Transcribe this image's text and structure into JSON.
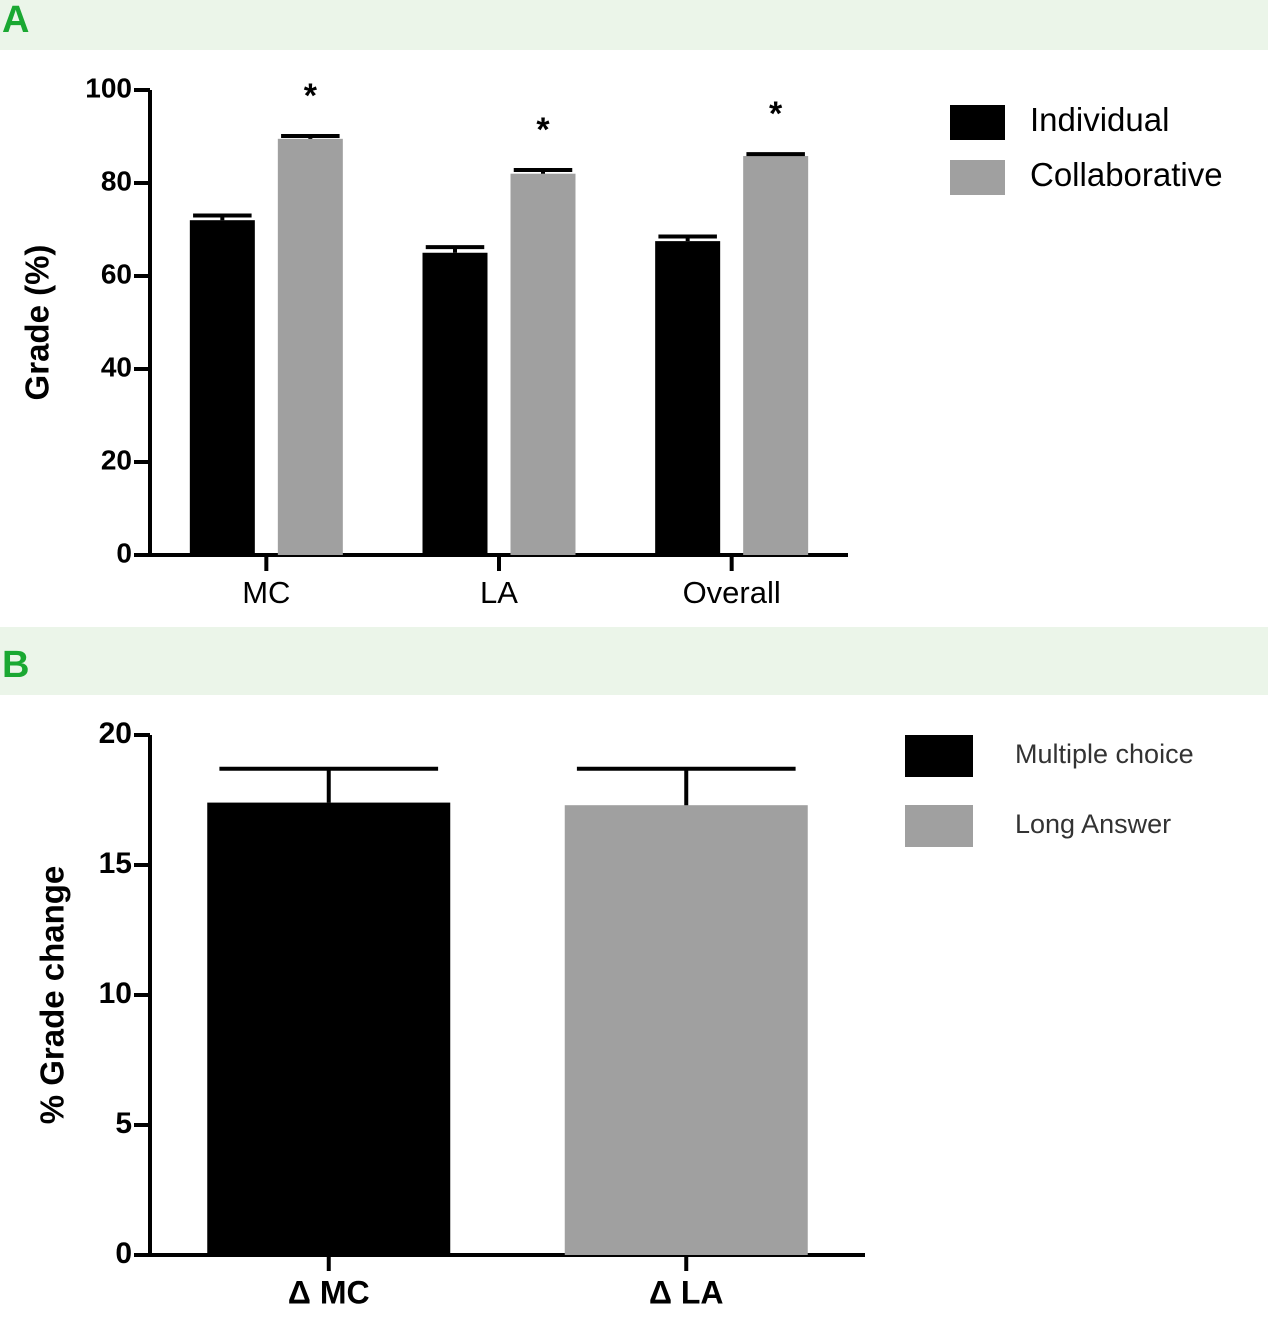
{
  "chart_data": [
    {
      "type": "bar",
      "panel": "A",
      "y_label": "Grade (%)",
      "categories": [
        "MC",
        "LA",
        "Overall"
      ],
      "series": [
        {
          "name": "Individual",
          "color": "#000000",
          "values": [
            72,
            65,
            67.5
          ],
          "errors": [
            1,
            1.2,
            1
          ]
        },
        {
          "name": "Collaborative",
          "color": "#a0a0a0",
          "values": [
            89.5,
            82,
            85.8
          ],
          "errors": [
            0.6,
            0.8,
            0.4
          ]
        }
      ],
      "annotations": [
        "*",
        "*",
        "*"
      ],
      "ylim": [
        0,
        100
      ],
      "yticks": [
        0,
        20,
        40,
        60,
        80,
        100
      ],
      "legend": "top-right"
    },
    {
      "type": "bar",
      "panel": "B",
      "y_label": "% Grade change",
      "categories": [
        "Δ MC",
        "Δ LA"
      ],
      "values": [
        17.4,
        17.3
      ],
      "errors": [
        1.3,
        1.4
      ],
      "colors": [
        "#000000",
        "#a0a0a0"
      ],
      "legend_labels": [
        "Multiple choice",
        "Long Answer"
      ],
      "ylim": [
        0,
        20
      ],
      "yticks": [
        0,
        5,
        10,
        15,
        20
      ],
      "legend": "top-right"
    }
  ]
}
